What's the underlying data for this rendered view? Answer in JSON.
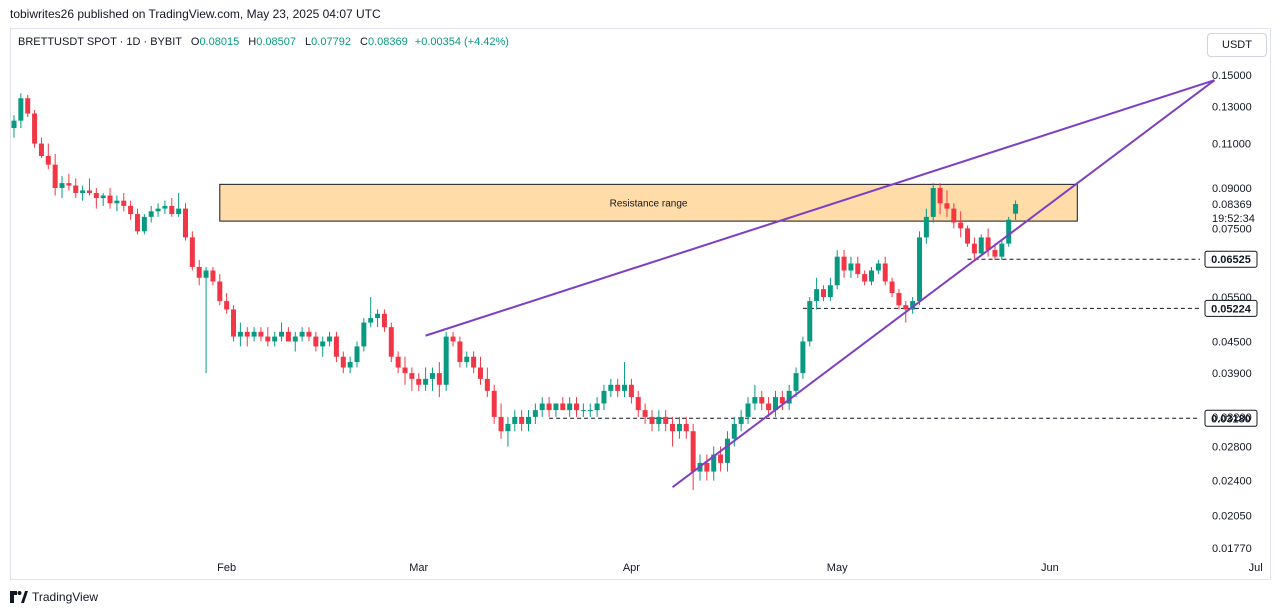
{
  "caption": "tobiwrites26 published on TradingView.com, May 23, 2025 04:07 UTC",
  "legend": {
    "symbol": "BRETTUSDT SPOT · 1D · BYBIT",
    "open_label": "O",
    "open": "0.08015",
    "high_label": "H",
    "high": "0.08507",
    "low_label": "L",
    "low": "0.07792",
    "close_label": "C",
    "close": "0.08369",
    "change": "+0.00354 (+4.42%)"
  },
  "currency_button": "USDT",
  "footer": {
    "brand": "TradingView"
  },
  "colors": {
    "up": "#089981",
    "down": "#f23645",
    "trendline": "#7e3fc6",
    "zone_fill": "#ffd699",
    "zone_border": "#131722"
  },
  "chart_data": {
    "type": "candlestick",
    "scale": "log",
    "y_ticks": [
      "0.15000",
      "0.13000",
      "0.11000",
      "0.09000",
      "0.07500",
      "0.05500",
      "0.04500",
      "0.03900",
      "0.03200",
      "0.02800",
      "0.02400",
      "0.02050",
      "0.01770"
    ],
    "x_ticks": [
      "Feb",
      "Mar",
      "Apr",
      "May",
      "Jun",
      "Jul"
    ],
    "last_price": "0.08369",
    "countdown": "19:52:34",
    "levels": [
      {
        "price": 0.06525,
        "label": "0.06525"
      },
      {
        "price": 0.05224,
        "label": "0.05224"
      },
      {
        "price": 0.0318,
        "label": "0.03180"
      }
    ],
    "zone": {
      "label": "Resistance range",
      "from_date": "2025-01-31",
      "to_date": "2025-06-05",
      "low": 0.0775,
      "high": 0.0915
    },
    "trendlines": [
      {
        "from": [
          "2025-03-02",
          0.0462
        ],
        "to": [
          "2025-06-25",
          0.1465
        ]
      },
      {
        "from": [
          "2025-04-07",
          0.0233
        ],
        "to": [
          "2025-06-25",
          0.1465
        ]
      }
    ],
    "candles": [
      [
        "2025-01-01",
        0.118,
        0.125,
        0.113,
        0.122
      ],
      [
        "2025-01-02",
        0.122,
        0.138,
        0.118,
        0.135
      ],
      [
        "2025-01-03",
        0.135,
        0.137,
        0.124,
        0.126
      ],
      [
        "2025-01-04",
        0.126,
        0.128,
        0.108,
        0.11
      ],
      [
        "2025-01-05",
        0.11,
        0.113,
        0.103,
        0.104
      ],
      [
        "2025-01-06",
        0.104,
        0.11,
        0.098,
        0.1
      ],
      [
        "2025-01-07",
        0.1,
        0.105,
        0.087,
        0.09
      ],
      [
        "2025-01-08",
        0.09,
        0.095,
        0.086,
        0.092
      ],
      [
        "2025-01-09",
        0.092,
        0.096,
        0.089,
        0.091
      ],
      [
        "2025-01-10",
        0.091,
        0.094,
        0.086,
        0.088
      ],
      [
        "2025-01-11",
        0.088,
        0.091,
        0.085,
        0.089
      ],
      [
        "2025-01-12",
        0.089,
        0.094,
        0.087,
        0.088
      ],
      [
        "2025-01-13",
        0.088,
        0.09,
        0.082,
        0.086
      ],
      [
        "2025-01-14",
        0.086,
        0.088,
        0.083,
        0.087
      ],
      [
        "2025-01-15",
        0.087,
        0.09,
        0.082,
        0.084
      ],
      [
        "2025-01-16",
        0.084,
        0.087,
        0.081,
        0.085
      ],
      [
        "2025-01-17",
        0.085,
        0.088,
        0.081,
        0.083
      ],
      [
        "2025-01-18",
        0.083,
        0.085,
        0.078,
        0.08
      ],
      [
        "2025-01-19",
        0.08,
        0.082,
        0.073,
        0.074
      ],
      [
        "2025-01-20",
        0.074,
        0.08,
        0.073,
        0.079
      ],
      [
        "2025-01-21",
        0.079,
        0.083,
        0.077,
        0.081
      ],
      [
        "2025-01-22",
        0.081,
        0.084,
        0.079,
        0.082
      ],
      [
        "2025-01-23",
        0.082,
        0.085,
        0.08,
        0.083
      ],
      [
        "2025-01-24",
        0.083,
        0.086,
        0.079,
        0.08
      ],
      [
        "2025-01-25",
        0.08,
        0.088,
        0.079,
        0.082
      ],
      [
        "2025-01-26",
        0.082,
        0.084,
        0.071,
        0.072
      ],
      [
        "2025-01-27",
        0.072,
        0.074,
        0.062,
        0.063
      ],
      [
        "2025-01-28",
        0.063,
        0.065,
        0.058,
        0.06
      ],
      [
        "2025-01-29",
        0.06,
        0.063,
        0.039,
        0.062
      ],
      [
        "2025-01-30",
        0.062,
        0.063,
        0.058,
        0.059
      ],
      [
        "2025-01-31",
        0.059,
        0.061,
        0.053,
        0.054
      ],
      [
        "2025-02-01",
        0.054,
        0.056,
        0.051,
        0.052
      ],
      [
        "2025-02-02",
        0.052,
        0.053,
        0.045,
        0.046
      ],
      [
        "2025-02-03",
        0.046,
        0.049,
        0.044,
        0.047
      ],
      [
        "2025-02-04",
        0.047,
        0.048,
        0.044,
        0.046
      ],
      [
        "2025-02-05",
        0.046,
        0.048,
        0.045,
        0.047
      ],
      [
        "2025-02-06",
        0.047,
        0.048,
        0.045,
        0.046
      ],
      [
        "2025-02-07",
        0.046,
        0.048,
        0.044,
        0.045
      ],
      [
        "2025-02-08",
        0.045,
        0.047,
        0.044,
        0.046
      ],
      [
        "2025-02-09",
        0.046,
        0.049,
        0.045,
        0.047
      ],
      [
        "2025-02-10",
        0.047,
        0.048,
        0.045,
        0.045
      ],
      [
        "2025-02-11",
        0.045,
        0.047,
        0.043,
        0.046
      ],
      [
        "2025-02-12",
        0.046,
        0.048,
        0.045,
        0.047
      ],
      [
        "2025-02-13",
        0.047,
        0.048,
        0.045,
        0.046
      ],
      [
        "2025-02-14",
        0.046,
        0.047,
        0.043,
        0.044
      ],
      [
        "2025-02-15",
        0.044,
        0.046,
        0.042,
        0.045
      ],
      [
        "2025-02-16",
        0.045,
        0.047,
        0.044,
        0.046
      ],
      [
        "2025-02-17",
        0.046,
        0.047,
        0.041,
        0.042
      ],
      [
        "2025-02-18",
        0.042,
        0.043,
        0.039,
        0.04
      ],
      [
        "2025-02-19",
        0.04,
        0.042,
        0.039,
        0.041
      ],
      [
        "2025-02-20",
        0.041,
        0.045,
        0.04,
        0.044
      ],
      [
        "2025-02-21",
        0.044,
        0.05,
        0.043,
        0.049
      ],
      [
        "2025-02-22",
        0.049,
        0.055,
        0.048,
        0.05
      ],
      [
        "2025-02-23",
        0.05,
        0.052,
        0.048,
        0.051
      ],
      [
        "2025-02-24",
        0.051,
        0.052,
        0.047,
        0.048
      ],
      [
        "2025-02-25",
        0.048,
        0.049,
        0.041,
        0.042
      ],
      [
        "2025-02-26",
        0.042,
        0.043,
        0.039,
        0.04
      ],
      [
        "2025-02-27",
        0.04,
        0.042,
        0.037,
        0.039
      ],
      [
        "2025-02-28",
        0.039,
        0.04,
        0.036,
        0.038
      ],
      [
        "2025-03-01",
        0.038,
        0.039,
        0.036,
        0.037
      ],
      [
        "2025-03-02",
        0.037,
        0.04,
        0.036,
        0.038
      ],
      [
        "2025-03-03",
        0.038,
        0.04,
        0.036,
        0.039
      ],
      [
        "2025-03-04",
        0.039,
        0.041,
        0.035,
        0.037
      ],
      [
        "2025-03-05",
        0.037,
        0.047,
        0.036,
        0.046
      ],
      [
        "2025-03-06",
        0.046,
        0.047,
        0.044,
        0.045
      ],
      [
        "2025-03-07",
        0.045,
        0.046,
        0.04,
        0.041
      ],
      [
        "2025-03-08",
        0.041,
        0.043,
        0.04,
        0.042
      ],
      [
        "2025-03-09",
        0.042,
        0.043,
        0.039,
        0.04
      ],
      [
        "2025-03-10",
        0.04,
        0.042,
        0.037,
        0.038
      ],
      [
        "2025-03-11",
        0.038,
        0.04,
        0.035,
        0.036
      ],
      [
        "2025-03-12",
        0.036,
        0.037,
        0.031,
        0.032
      ],
      [
        "2025-03-13",
        0.032,
        0.034,
        0.029,
        0.03
      ],
      [
        "2025-03-14",
        0.03,
        0.032,
        0.028,
        0.031
      ],
      [
        "2025-03-15",
        0.031,
        0.033,
        0.03,
        0.032
      ],
      [
        "2025-03-16",
        0.032,
        0.033,
        0.03,
        0.031
      ],
      [
        "2025-03-17",
        0.031,
        0.033,
        0.03,
        0.032
      ],
      [
        "2025-03-18",
        0.032,
        0.034,
        0.031,
        0.033
      ],
      [
        "2025-03-19",
        0.033,
        0.035,
        0.032,
        0.034
      ],
      [
        "2025-03-20",
        0.034,
        0.035,
        0.032,
        0.033
      ],
      [
        "2025-03-21",
        0.033,
        0.034,
        0.032,
        0.034
      ],
      [
        "2025-03-22",
        0.034,
        0.035,
        0.033,
        0.033
      ],
      [
        "2025-03-23",
        0.033,
        0.035,
        0.032,
        0.034
      ],
      [
        "2025-03-24",
        0.034,
        0.035,
        0.032,
        0.033
      ],
      [
        "2025-03-25",
        0.033,
        0.034,
        0.032,
        0.033
      ],
      [
        "2025-03-26",
        0.033,
        0.034,
        0.032,
        0.033
      ],
      [
        "2025-03-27",
        0.033,
        0.035,
        0.032,
        0.034
      ],
      [
        "2025-03-28",
        0.034,
        0.037,
        0.033,
        0.036
      ],
      [
        "2025-03-29",
        0.036,
        0.038,
        0.035,
        0.037
      ],
      [
        "2025-03-30",
        0.037,
        0.038,
        0.035,
        0.036
      ],
      [
        "2025-03-31",
        0.036,
        0.041,
        0.035,
        0.037
      ],
      [
        "2025-04-01",
        0.037,
        0.038,
        0.034,
        0.035
      ],
      [
        "2025-04-02",
        0.035,
        0.036,
        0.032,
        0.033
      ],
      [
        "2025-04-03",
        0.033,
        0.034,
        0.031,
        0.032
      ],
      [
        "2025-04-04",
        0.032,
        0.033,
        0.03,
        0.031
      ],
      [
        "2025-04-05",
        0.031,
        0.033,
        0.03,
        0.032
      ],
      [
        "2025-04-06",
        0.032,
        0.033,
        0.03,
        0.031
      ],
      [
        "2025-04-07",
        0.031,
        0.032,
        0.028,
        0.03
      ],
      [
        "2025-04-08",
        0.03,
        0.032,
        0.029,
        0.031
      ],
      [
        "2025-04-09",
        0.031,
        0.032,
        0.029,
        0.03
      ],
      [
        "2025-04-10",
        0.03,
        0.031,
        0.023,
        0.025
      ],
      [
        "2025-04-11",
        0.025,
        0.027,
        0.024,
        0.026
      ],
      [
        "2025-04-12",
        0.026,
        0.027,
        0.024,
        0.025
      ],
      [
        "2025-04-13",
        0.025,
        0.028,
        0.024,
        0.027
      ],
      [
        "2025-04-14",
        0.027,
        0.028,
        0.025,
        0.026
      ],
      [
        "2025-04-15",
        0.026,
        0.03,
        0.025,
        0.029
      ],
      [
        "2025-04-16",
        0.029,
        0.032,
        0.028,
        0.031
      ],
      [
        "2025-04-17",
        0.031,
        0.033,
        0.03,
        0.032
      ],
      [
        "2025-04-18",
        0.032,
        0.035,
        0.031,
        0.034
      ],
      [
        "2025-04-19",
        0.034,
        0.037,
        0.033,
        0.035
      ],
      [
        "2025-04-20",
        0.035,
        0.036,
        0.033,
        0.034
      ],
      [
        "2025-04-21",
        0.034,
        0.035,
        0.032,
        0.033
      ],
      [
        "2025-04-22",
        0.033,
        0.036,
        0.032,
        0.035
      ],
      [
        "2025-04-23",
        0.035,
        0.036,
        0.033,
        0.034
      ],
      [
        "2025-04-24",
        0.034,
        0.037,
        0.033,
        0.036
      ],
      [
        "2025-04-25",
        0.036,
        0.04,
        0.035,
        0.039
      ],
      [
        "2025-04-26",
        0.039,
        0.046,
        0.038,
        0.045
      ],
      [
        "2025-04-27",
        0.045,
        0.055,
        0.044,
        0.054
      ],
      [
        "2025-04-28",
        0.054,
        0.06,
        0.052,
        0.057
      ],
      [
        "2025-04-29",
        0.057,
        0.058,
        0.054,
        0.055
      ],
      [
        "2025-04-30",
        0.055,
        0.06,
        0.054,
        0.058
      ],
      [
        "2025-05-01",
        0.058,
        0.068,
        0.057,
        0.066
      ],
      [
        "2025-05-02",
        0.066,
        0.068,
        0.06,
        0.062
      ],
      [
        "2025-05-03",
        0.062,
        0.066,
        0.06,
        0.064
      ],
      [
        "2025-05-04",
        0.064,
        0.066,
        0.06,
        0.061
      ],
      [
        "2025-05-05",
        0.061,
        0.062,
        0.058,
        0.059
      ],
      [
        "2025-05-06",
        0.059,
        0.063,
        0.058,
        0.062
      ],
      [
        "2025-05-07",
        0.062,
        0.065,
        0.061,
        0.064
      ],
      [
        "2025-05-08",
        0.064,
        0.066,
        0.058,
        0.059
      ],
      [
        "2025-05-09",
        0.059,
        0.06,
        0.055,
        0.056
      ],
      [
        "2025-05-10",
        0.056,
        0.057,
        0.052,
        0.053
      ],
      [
        "2025-05-11",
        0.053,
        0.054,
        0.049,
        0.052
      ],
      [
        "2025-05-12",
        0.052,
        0.055,
        0.051,
        0.054
      ],
      [
        "2025-05-13",
        0.054,
        0.074,
        0.053,
        0.072
      ],
      [
        "2025-05-14",
        0.072,
        0.082,
        0.07,
        0.079
      ],
      [
        "2025-05-15",
        0.079,
        0.092,
        0.077,
        0.09
      ],
      [
        "2025-05-16",
        0.09,
        0.092,
        0.08,
        0.084
      ],
      [
        "2025-05-17",
        0.084,
        0.089,
        0.079,
        0.082
      ],
      [
        "2025-05-18",
        0.082,
        0.084,
        0.075,
        0.077
      ],
      [
        "2025-05-19",
        0.077,
        0.081,
        0.072,
        0.075
      ],
      [
        "2025-05-20",
        0.075,
        0.076,
        0.069,
        0.07
      ],
      [
        "2025-05-21",
        0.07,
        0.072,
        0.065,
        0.067
      ],
      [
        "2025-05-22",
        0.067,
        0.073,
        0.066,
        0.072
      ],
      [
        "2025-05-23",
        0.072,
        0.075,
        0.066,
        0.068
      ],
      [
        "2025-05-24",
        0.068,
        0.07,
        0.065,
        0.066
      ],
      [
        "2025-05-25",
        0.066,
        0.071,
        0.065,
        0.07
      ],
      [
        "2025-05-26",
        0.07,
        0.079,
        0.069,
        0.078
      ],
      [
        "2025-05-27",
        0.08015,
        0.08507,
        0.07792,
        0.08369
      ]
    ]
  }
}
